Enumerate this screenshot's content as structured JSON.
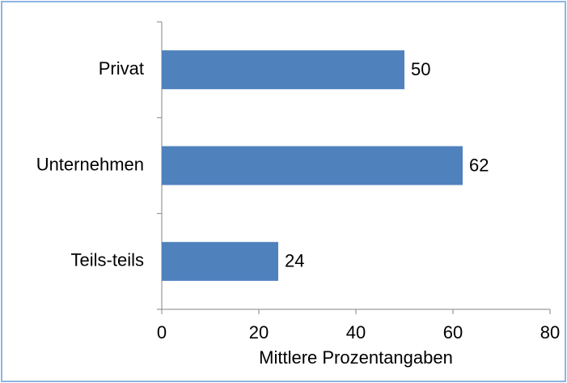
{
  "chart_data": {
    "type": "bar",
    "orientation": "horizontal",
    "categories": [
      "Privat",
      "Unternehmen",
      "Teils-teils"
    ],
    "values": [
      50,
      62,
      24
    ],
    "color": "#4f81bd",
    "xlabel": "Mittlere Prozentangaben",
    "xlim": [
      0,
      80
    ],
    "xticks": [
      0,
      20,
      40,
      60,
      80
    ],
    "grid": false
  }
}
